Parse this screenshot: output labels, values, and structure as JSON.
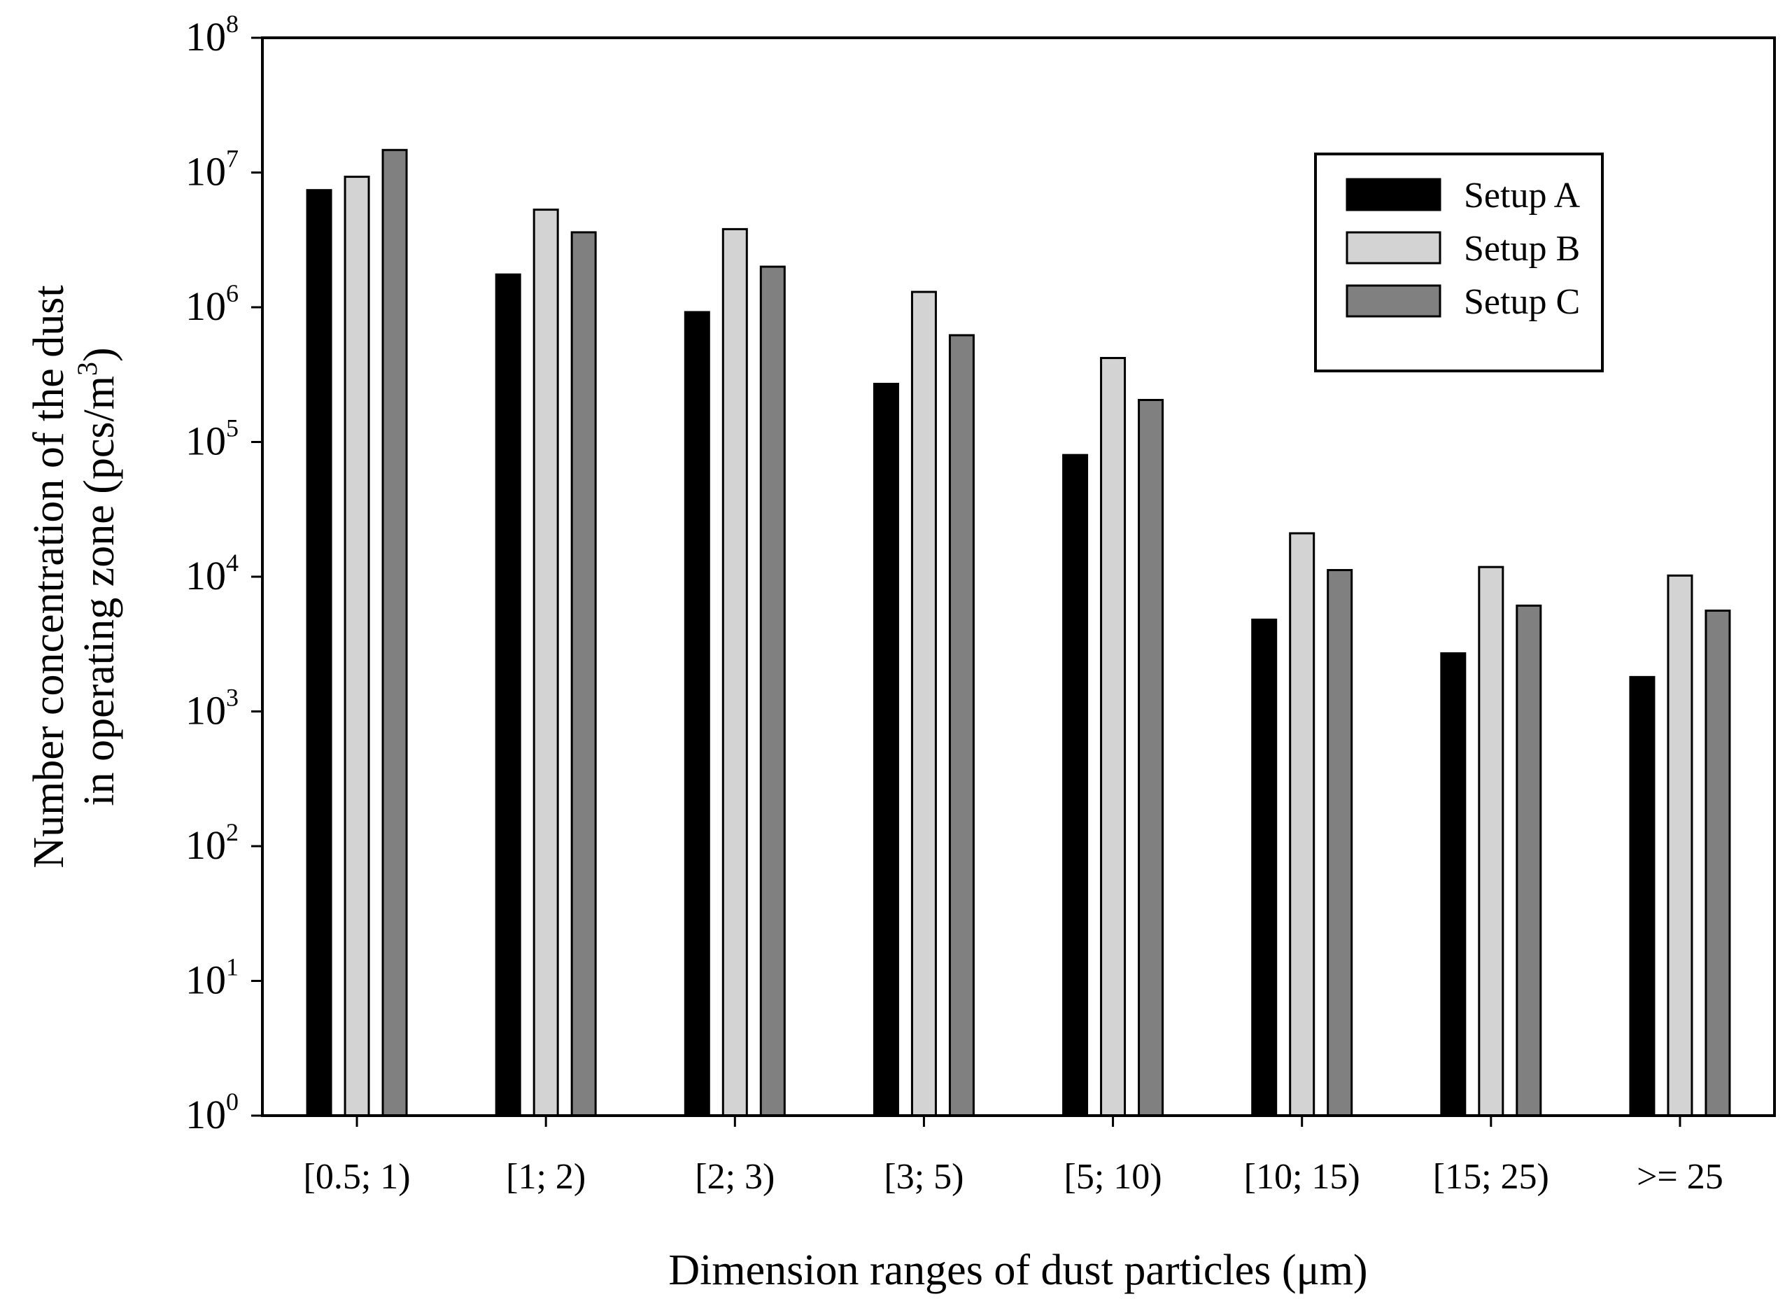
{
  "chart_data": {
    "type": "bar",
    "xlabel": "Dimension ranges of dust particles (μm)",
    "ylabel_line1": "Number concentration of the dust",
    "ylabel_line2_prefix": "in operating zone (pcs/m",
    "ylabel_line2_sup": "3",
    "ylabel_line2_suffix": ")",
    "yscale": "log",
    "ylim": [
      1,
      100000000
    ],
    "y_tick_base": "10",
    "y_tick_exponents": [
      "0",
      "1",
      "2",
      "3",
      "4",
      "5",
      "6",
      "7",
      "8"
    ],
    "categories": [
      "[0.5; 1)",
      "[1; 2)",
      "[2; 3)",
      "[3; 5)",
      "[5; 10)",
      "[10; 15)",
      "[15; 25)",
      ">= 25"
    ],
    "series": [
      {
        "name": "Setup A",
        "color": "#000000",
        "values": [
          7400000,
          1750000,
          920000,
          270000,
          80000,
          4800,
          2700,
          1800
        ]
      },
      {
        "name": "Setup B",
        "color": "#d3d3d3",
        "values": [
          9300000,
          5300000,
          3800000,
          1300000,
          420000,
          21000,
          11800,
          10200
        ]
      },
      {
        "name": "Setup C",
        "color": "#808080",
        "values": [
          14700000,
          3600000,
          2000000,
          620000,
          205000,
          11200,
          6100,
          5600
        ]
      }
    ],
    "legend_position": "top-right",
    "grid": false
  }
}
